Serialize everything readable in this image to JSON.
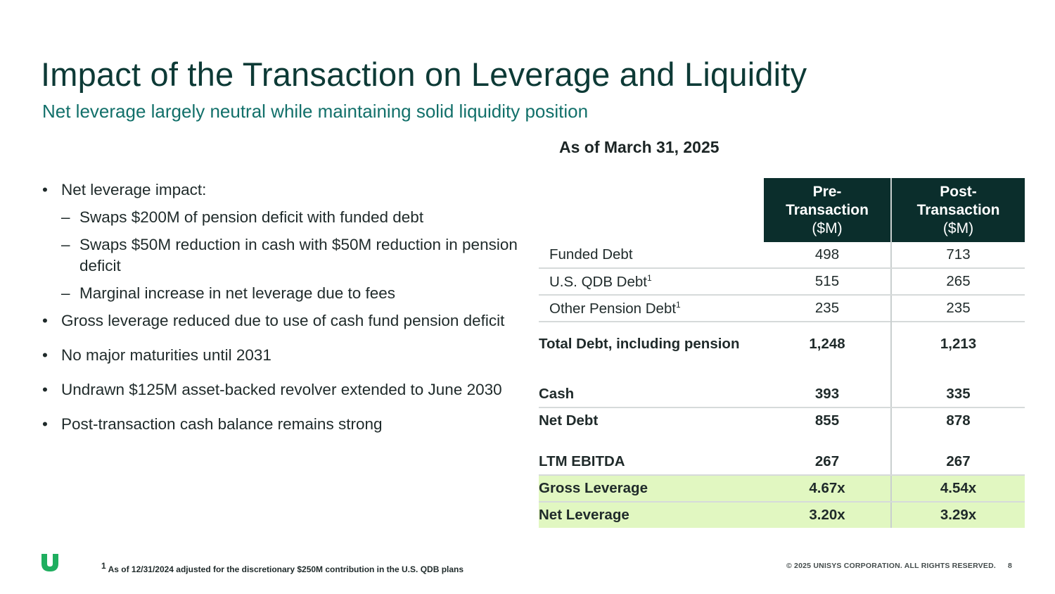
{
  "slide": {
    "title": "Impact of the Transaction on Leverage and Liquidity",
    "subtitle": "Net leverage largely neutral while maintaining solid liquidity position",
    "as_of": "As of March 31, 2025"
  },
  "bullets": [
    {
      "bullet_glyph": "•",
      "text": "Net leverage  impact:",
      "sub_glyph": "–",
      "subs": [
        "Swaps $200M of pension deficit with funded debt",
        "Swaps $50M reduction in cash with $50M reduction in pension deficit",
        "Marginal increase in net leverage due to fees"
      ]
    },
    {
      "bullet_glyph": "•",
      "text": "Gross leverage reduced due to use of cash fund pension deficit"
    },
    {
      "bullet_glyph": "•",
      "text": "No major maturities until 2031"
    },
    {
      "bullet_glyph": "•",
      "text": "Undrawn $125M asset-backed revolver extended to June 2030"
    },
    {
      "bullet_glyph": "•",
      "text": "Post-transaction cash balance remains strong"
    }
  ],
  "table": {
    "headers": [
      {
        "line1": "Pre-",
        "line2": "Transaction",
        "line3": "($M)"
      },
      {
        "line1": "Post-",
        "line2": "Transaction",
        "line3": "($M)"
      }
    ],
    "rows": [
      {
        "label": "Funded Debt",
        "pre": "498",
        "post": "713"
      },
      {
        "label": "U.S. QDB Debt",
        "sup": "1",
        "pre": "515",
        "post": "265"
      },
      {
        "label": "Other Pension Debt",
        "sup": "1",
        "pre": "235",
        "post": "235"
      },
      {
        "label": "Total Debt, including pension",
        "pre": "1,248",
        "post": "1,213"
      },
      {
        "label": "Cash",
        "pre": "393",
        "post": "335"
      },
      {
        "label": "Net Debt",
        "pre": "855",
        "post": "878"
      },
      {
        "label": "LTM EBITDA",
        "pre": "267",
        "post": "267"
      },
      {
        "label": "Gross Leverage",
        "pre": "4.67x",
        "post": "4.54x"
      },
      {
        "label": "Net Leverage",
        "pre": "3.20x",
        "post": "3.29x"
      }
    ]
  },
  "footer": {
    "footnote_marker": "1",
    "footnote": "As of 12/31/2024 adjusted for the discretionary $250M contribution in the U.S. QDB plans",
    "copyright": "© 2025 UNISYS CORPORATION. ALL RIGHTS RESERVED.",
    "page_number": "8"
  },
  "colors": {
    "title": "#0d3a36",
    "subtitle": "#12706a",
    "header_bg": "#0b2e2c",
    "highlight_bg": "#e1f7c1",
    "logo": "#1fae5f"
  }
}
